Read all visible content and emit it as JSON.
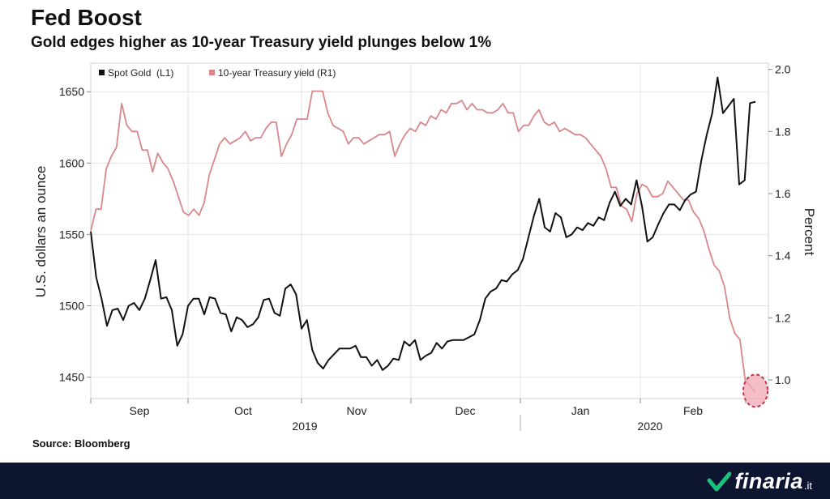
{
  "header": {
    "title": "Fed Boost",
    "subtitle": "Gold edges higher as 10-year Treasury yield plunges below 1%"
  },
  "source": "Source: Bloomberg",
  "footer": {
    "brand": "finaria",
    "brand_suffix": ".it"
  },
  "chart_data": {
    "type": "line",
    "legend_position": "top-left",
    "grid": true,
    "ylabel_left": "U.S. dollars an ounce",
    "ylabel_right": "Percent",
    "ylim_left": [
      1435,
      1670
    ],
    "ylim_right": [
      0.94,
      2.02
    ],
    "yticks_left": [
      "1450",
      "1500",
      "1550",
      "1600",
      "1650"
    ],
    "yticks_right": [
      "1.0",
      "1.2",
      "1.4",
      "1.6",
      "1.8",
      "2.0"
    ],
    "month_labels": [
      "Sep",
      "Oct",
      "Nov",
      "Dec",
      "Jan",
      "Feb"
    ],
    "year_labels": [
      "2019",
      "2020"
    ],
    "colors": {
      "gold": "#111111",
      "yield": "#d9878a",
      "marker_fill": "#f1a7b3",
      "marker_stroke": "#c7304d"
    },
    "series": [
      {
        "name": "Spot Gold  (L1)",
        "axis": "left",
        "values": [
          1552,
          1520,
          1505,
          1486,
          1497,
          1498,
          1490,
          1500,
          1502,
          1497,
          1505,
          1518,
          1532,
          1505,
          1506,
          1497,
          1472,
          1480,
          1500,
          1505,
          1505,
          1494,
          1506,
          1505,
          1495,
          1494,
          1482,
          1492,
          1490,
          1485,
          1487,
          1492,
          1504,
          1505,
          1495,
          1493,
          1512,
          1515,
          1508,
          1484,
          1490,
          1469,
          1460,
          1456,
          1462,
          1466,
          1470,
          1470,
          1470,
          1472,
          1464,
          1464,
          1458,
          1462,
          1455,
          1458,
          1463,
          1462,
          1475,
          1472,
          1476,
          1462,
          1465,
          1467,
          1474,
          1470,
          1475,
          1476,
          1476,
          1476,
          1478,
          1480,
          1490,
          1505,
          1510,
          1512,
          1518,
          1517,
          1522,
          1525,
          1533,
          1548,
          1563,
          1575,
          1555,
          1552,
          1565,
          1562,
          1548,
          1550,
          1555,
          1553,
          1558,
          1556,
          1562,
          1560,
          1572,
          1580,
          1570,
          1575,
          1571,
          1588,
          1570,
          1545,
          1548,
          1557,
          1565,
          1571,
          1571,
          1567,
          1574,
          1578,
          1580,
          1602,
          1620,
          1635,
          1660,
          1635,
          1640,
          1645,
          1585,
          1588,
          1642,
          1643
        ]
      },
      {
        "name": "10-year Treasury yield (R1)",
        "axis": "right",
        "values": [
          1.48,
          1.55,
          1.55,
          1.68,
          1.72,
          1.75,
          1.89,
          1.82,
          1.8,
          1.8,
          1.74,
          1.74,
          1.67,
          1.73,
          1.7,
          1.68,
          1.64,
          1.59,
          1.54,
          1.53,
          1.55,
          1.53,
          1.57,
          1.66,
          1.71,
          1.76,
          1.78,
          1.76,
          1.77,
          1.78,
          1.8,
          1.77,
          1.78,
          1.78,
          1.81,
          1.83,
          1.83,
          1.72,
          1.76,
          1.79,
          1.84,
          1.84,
          1.84,
          1.93,
          1.93,
          1.93,
          1.86,
          1.82,
          1.81,
          1.8,
          1.76,
          1.78,
          1.78,
          1.76,
          1.77,
          1.78,
          1.79,
          1.79,
          1.8,
          1.72,
          1.76,
          1.79,
          1.81,
          1.8,
          1.83,
          1.82,
          1.85,
          1.84,
          1.87,
          1.86,
          1.89,
          1.89,
          1.9,
          1.87,
          1.89,
          1.87,
          1.87,
          1.86,
          1.86,
          1.87,
          1.89,
          1.86,
          1.86,
          1.8,
          1.82,
          1.82,
          1.85,
          1.87,
          1.83,
          1.82,
          1.83,
          1.8,
          1.81,
          1.8,
          1.79,
          1.79,
          1.78,
          1.76,
          1.74,
          1.72,
          1.68,
          1.62,
          1.62,
          1.56,
          1.55,
          1.51,
          1.6,
          1.63,
          1.62,
          1.59,
          1.59,
          1.6,
          1.64,
          1.62,
          1.6,
          1.58,
          1.58,
          1.54,
          1.52,
          1.48,
          1.42,
          1.37,
          1.35,
          1.3,
          1.2,
          1.15,
          1.13,
          1.0,
          0.98,
          0.96
        ]
      }
    ]
  }
}
